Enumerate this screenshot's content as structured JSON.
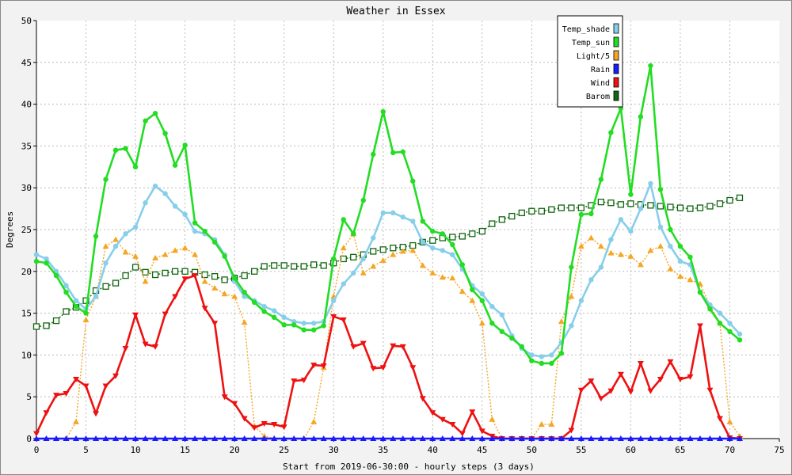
{
  "chart_data": {
    "type": "line",
    "title": "Weather in Essex",
    "xlabel": "Start from 2019-06-30:00 - hourly steps (3 days)",
    "ylabel": "Degrees",
    "xlim": [
      0,
      75
    ],
    "ylim": [
      0,
      50
    ],
    "x_ticks": [
      0,
      5,
      10,
      15,
      20,
      25,
      30,
      35,
      40,
      45,
      50,
      55,
      60,
      65,
      70,
      75
    ],
    "y_ticks": [
      0,
      5,
      10,
      15,
      20,
      25,
      30,
      35,
      40,
      45,
      50
    ],
    "grid": true,
    "legend_position": "top-right",
    "series": [
      {
        "name": "Temp_shade",
        "color": "#87ceeb",
        "marker": "circle",
        "dashed": false,
        "values": [
          22.0,
          21.5,
          20.0,
          18.3,
          16.5,
          15.5,
          17.0,
          21.0,
          23.0,
          24.5,
          25.3,
          28.2,
          30.2,
          29.3,
          27.8,
          26.8,
          24.8,
          24.5,
          23.8,
          22.0,
          18.8,
          17.0,
          16.5,
          15.8,
          15.3,
          14.5,
          14.0,
          13.8,
          13.8,
          14.0,
          16.5,
          18.5,
          19.8,
          21.5,
          24.0,
          27.0,
          27.0,
          26.5,
          26.0,
          23.5,
          22.8,
          22.5,
          22.0,
          20.3,
          18.3,
          17.3,
          15.8,
          14.8,
          12.3,
          10.8,
          10.0,
          9.8,
          10.0,
          11.5,
          13.5,
          16.5,
          19.0,
          20.5,
          23.8,
          26.2,
          24.8,
          27.5,
          30.5,
          25.3,
          23.0,
          21.2,
          20.8,
          17.5,
          16.0,
          15.0,
          13.8,
          12.5
        ]
      },
      {
        "name": "Temp_sun",
        "color": "#22dd22",
        "marker": "circle",
        "dashed": false,
        "values": [
          21.2,
          21.0,
          19.5,
          17.5,
          15.8,
          15.0,
          24.2,
          31.0,
          34.5,
          34.7,
          32.5,
          38.0,
          38.9,
          36.5,
          32.7,
          35.1,
          25.8,
          24.8,
          23.5,
          21.8,
          19.2,
          17.5,
          16.3,
          15.2,
          14.5,
          13.6,
          13.6,
          13.0,
          13.0,
          13.5,
          21.5,
          26.2,
          24.5,
          28.5,
          34.0,
          39.1,
          34.2,
          34.3,
          30.8,
          26.0,
          24.8,
          24.5,
          23.2,
          20.8,
          17.8,
          16.5,
          13.8,
          12.8,
          12.0,
          11.0,
          9.3,
          9.0,
          9.0,
          10.2,
          20.5,
          26.8,
          26.9,
          31.0,
          36.6,
          39.5,
          29.2,
          38.5,
          44.6,
          29.8,
          25.0,
          23.0,
          21.7,
          17.5,
          15.5,
          13.8,
          12.8,
          11.8
        ]
      },
      {
        "name": "Light/5",
        "color": "#f5a623",
        "marker": "triangle",
        "dashed": true,
        "values": [
          0,
          0,
          0,
          0,
          2.0,
          14.2,
          17.0,
          23.0,
          23.8,
          22.3,
          21.8,
          18.8,
          21.6,
          22.0,
          22.5,
          22.8,
          22.0,
          18.8,
          18.0,
          17.3,
          17.0,
          13.9,
          1.5,
          0.3,
          0,
          0,
          0,
          0,
          2.0,
          8.5,
          17.0,
          22.8,
          24.5,
          19.8,
          20.6,
          21.3,
          22.0,
          22.4,
          22.5,
          20.7,
          19.8,
          19.3,
          19.2,
          17.6,
          16.5,
          13.8,
          2.3,
          0,
          0,
          0,
          0,
          1.7,
          1.7,
          14.0,
          17.0,
          23.0,
          24.0,
          23.0,
          22.2,
          22.0,
          21.8,
          20.8,
          22.5,
          23.0,
          20.3,
          19.4,
          19.0,
          18.5,
          15.9,
          13.8,
          2.0,
          0.3
        ]
      },
      {
        "name": "Rain",
        "color": "#1a1aff",
        "marker": "triangle",
        "dashed": false,
        "values": [
          0,
          0,
          0,
          0,
          0,
          0,
          0,
          0,
          0,
          0,
          0,
          0,
          0,
          0,
          0,
          0,
          0,
          0,
          0,
          0,
          0,
          0,
          0,
          0,
          0,
          0,
          0,
          0,
          0,
          0,
          0,
          0,
          0,
          0,
          0,
          0,
          0,
          0,
          0,
          0,
          0,
          0,
          0,
          0,
          0,
          0,
          0,
          0,
          0,
          0,
          0,
          0,
          0,
          0,
          0,
          0,
          0,
          0,
          0,
          0,
          0,
          0,
          0,
          0,
          0,
          0,
          0,
          0,
          0,
          0,
          0,
          0
        ]
      },
      {
        "name": "Wind",
        "color": "#ee1111",
        "marker": "triangle-down",
        "dashed": false,
        "values": [
          0.6,
          3.1,
          5.2,
          5.4,
          7.1,
          6.3,
          3.0,
          6.3,
          7.5,
          10.8,
          14.8,
          11.3,
          11.0,
          14.9,
          17.0,
          19.1,
          19.5,
          15.6,
          13.8,
          5.0,
          4.2,
          2.4,
          1.3,
          1.8,
          1.7,
          1.4,
          6.9,
          7.0,
          8.8,
          8.7,
          14.6,
          14.2,
          11.0,
          11.4,
          8.4,
          8.5,
          11.1,
          11.0,
          8.5,
          4.8,
          3.1,
          2.3,
          1.7,
          0.6,
          3.2,
          0.9,
          0.3,
          0,
          0,
          0,
          0,
          0,
          0,
          0,
          1.0,
          5.8,
          6.9,
          4.8,
          5.7,
          7.7,
          5.6,
          9.0,
          5.7,
          7.1,
          9.2,
          7.1,
          7.4,
          13.5,
          5.8,
          2.4,
          0.1,
          0
        ]
      },
      {
        "name": "Barom",
        "color": "#116611",
        "marker": "square",
        "dashed": true,
        "values": [
          13.4,
          13.5,
          14.1,
          15.2,
          15.7,
          16.5,
          17.7,
          18.2,
          18.6,
          19.5,
          20.5,
          19.9,
          19.6,
          19.8,
          20.0,
          20.0,
          19.9,
          19.6,
          19.4,
          19.0,
          19.2,
          19.5,
          20.0,
          20.6,
          20.7,
          20.7,
          20.6,
          20.6,
          20.8,
          20.7,
          21.0,
          21.5,
          21.7,
          22.0,
          22.4,
          22.6,
          22.8,
          22.9,
          23.1,
          23.5,
          23.7,
          24.0,
          24.1,
          24.2,
          24.5,
          24.8,
          25.7,
          26.2,
          26.6,
          27.0,
          27.2,
          27.2,
          27.4,
          27.6,
          27.6,
          27.6,
          27.9,
          28.3,
          28.2,
          28.0,
          28.1,
          28.0,
          27.9,
          27.8,
          27.7,
          27.6,
          27.5,
          27.6,
          27.8,
          28.1,
          28.5,
          28.8
        ]
      }
    ]
  }
}
